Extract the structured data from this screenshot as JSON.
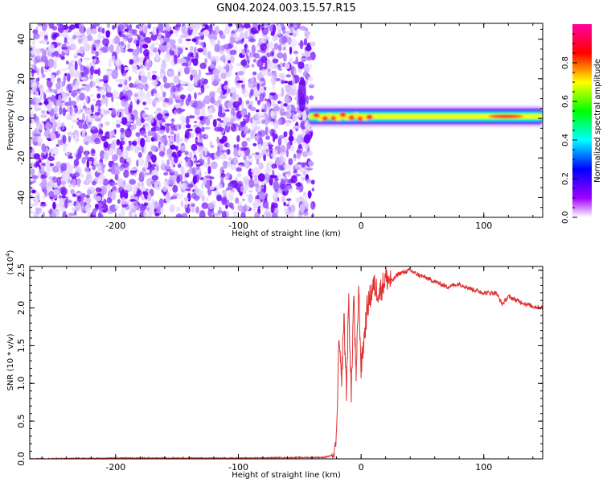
{
  "title": "GN04.2024.003.15.57.R15",
  "chart_data": [
    {
      "type": "heatmap",
      "xlabel": "Height of straight line (km)",
      "ylabel": "Frequency (Hz)",
      "xlim": [
        -270,
        148
      ],
      "ylim": [
        -50,
        48
      ],
      "x_ticks": [
        -200,
        -100,
        0,
        100
      ],
      "y_ticks": [
        -40,
        -20,
        0,
        20,
        40
      ],
      "colorbar": {
        "label": "Normalized spectral amplitude",
        "range": [
          0,
          1
        ],
        "ticks": [
          "0.0",
          "0.2",
          "0.4",
          "0.6",
          "0.8"
        ],
        "tick_values": [
          0.0,
          0.2,
          0.4,
          0.6,
          0.8
        ],
        "colormap": [
          "#ffffff",
          "#a000ff",
          "#0000ff",
          "#00ffff",
          "#00ff00",
          "#ffff00",
          "#ff0000",
          "#ff00a0"
        ]
      },
      "regions": [
        {
          "x_range": [
            -270,
            -43
          ],
          "freq_range": [
            -50,
            48
          ],
          "amplitude": 0.1,
          "description_level": "noise"
        },
        {
          "x_range": [
            -43,
            148
          ],
          "freq_center": 1,
          "freq_halfwidth": 4,
          "amplitude": 0.85
        }
      ]
    },
    {
      "type": "line",
      "xlabel": "Height of straight line (km)",
      "ylabel": "SNR (10 * v/v)",
      "y_multiplier": "(x10^4)",
      "xlim": [
        -270,
        148
      ],
      "ylim": [
        0,
        2.55
      ],
      "x_ticks": [
        -200,
        -100,
        0,
        100
      ],
      "y_ticks": [
        "0.0",
        "0.5",
        "1.0",
        "1.5",
        "2.0",
        "2.5"
      ],
      "y_tick_values": [
        0.0,
        0.5,
        1.0,
        1.5,
        2.0,
        2.5
      ],
      "color": "#e03030",
      "x": [
        -270,
        -200,
        -100,
        -30,
        -22,
        -20,
        -18,
        -16,
        -14,
        -12,
        -10,
        -8,
        -6,
        -4,
        -2,
        0,
        5,
        10,
        15,
        20,
        25,
        30,
        40,
        45,
        50,
        60,
        70,
        80,
        90,
        100,
        110,
        115,
        120,
        130,
        140,
        148
      ],
      "values": [
        0.0,
        0.01,
        0.01,
        0.02,
        0.05,
        0.3,
        1.6,
        1.0,
        1.9,
        0.9,
        2.1,
        0.8,
        2.2,
        1.0,
        2.3,
        1.2,
        2.0,
        2.3,
        2.2,
        2.4,
        2.35,
        2.45,
        2.5,
        2.45,
        2.42,
        2.35,
        2.28,
        2.32,
        2.25,
        2.2,
        2.2,
        2.05,
        2.15,
        2.08,
        2.02,
        2.0
      ]
    }
  ]
}
